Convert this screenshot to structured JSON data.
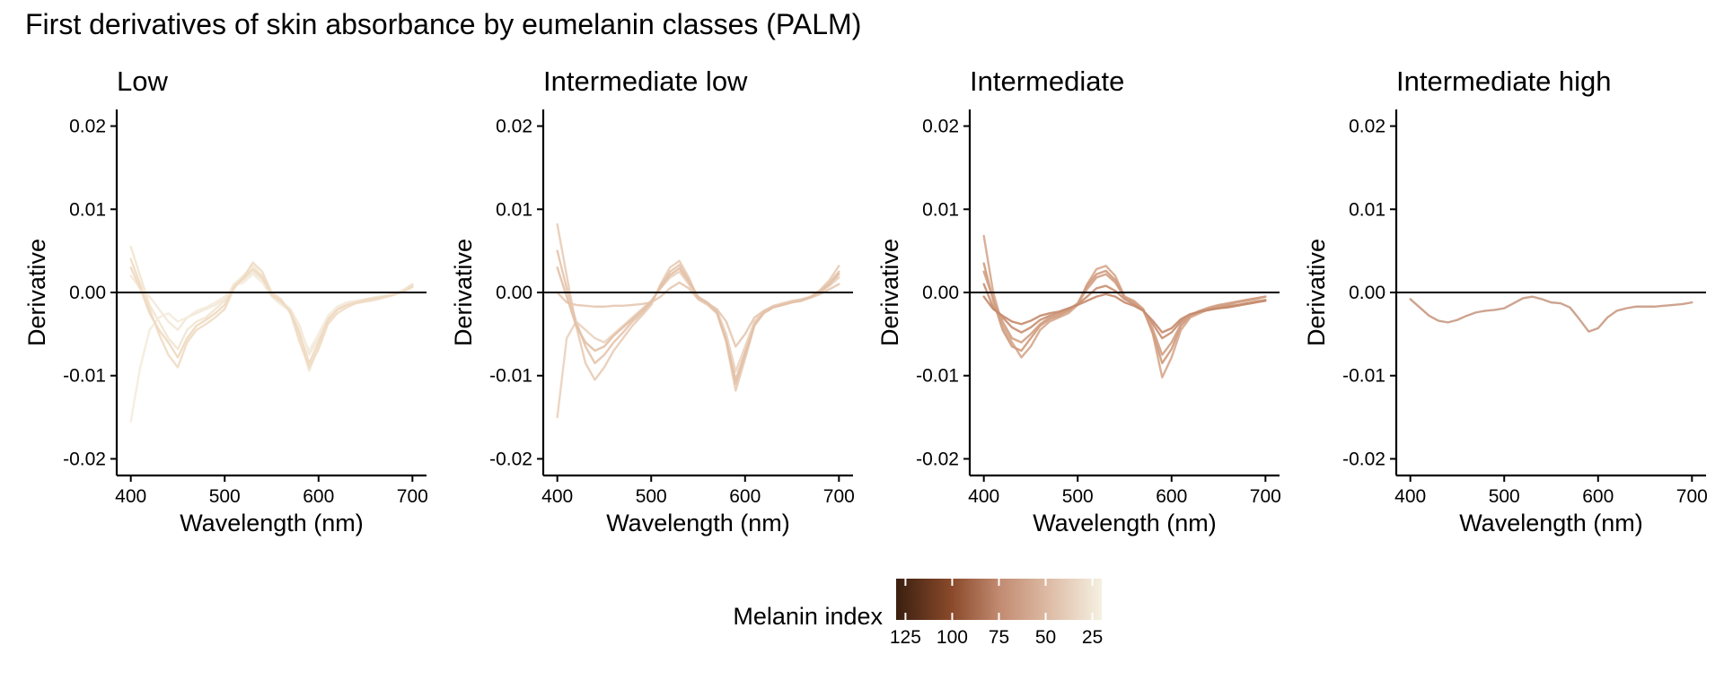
{
  "chart_data": {
    "type": "line",
    "title": "First derivatives of skin absorbance by eumelanin classes (PALM)",
    "xlabel": "Wavelength (nm)",
    "ylabel": "Derivative",
    "xlim": [
      385,
      715
    ],
    "ylim": [
      -0.022,
      0.022
    ],
    "x_ticks": [
      400,
      500,
      600,
      700
    ],
    "y_ticks": [
      0.02,
      0.01,
      0.0,
      -0.01,
      -0.02
    ],
    "y_tick_labels": [
      "0.02",
      "0.01",
      "0.00",
      "-0.01",
      "-0.02"
    ],
    "hline": 0,
    "x": [
      400,
      410,
      420,
      430,
      440,
      450,
      460,
      470,
      480,
      490,
      500,
      510,
      520,
      530,
      540,
      550,
      560,
      570,
      580,
      590,
      600,
      610,
      620,
      630,
      640,
      650,
      660,
      670,
      680,
      690,
      700
    ],
    "legend": {
      "title": "Melanin index",
      "type": "colorbar",
      "range": [
        20,
        130
      ],
      "ticks": [
        125,
        100,
        75,
        50,
        25
      ],
      "stops": [
        {
          "value": 130,
          "color": "#3a1f10"
        },
        {
          "value": 100,
          "color": "#8b4a2b"
        },
        {
          "value": 75,
          "color": "#c18a70"
        },
        {
          "value": 50,
          "color": "#dcb8a2"
        },
        {
          "value": 20,
          "color": "#f5f0e1"
        }
      ]
    },
    "panels": [
      {
        "title": "Low",
        "series": [
          {
            "name": "low-1",
            "color": "#f2e5d2",
            "values": [
              0.0055,
              0.002,
              -0.0015,
              -0.0035,
              -0.0055,
              -0.0068,
              -0.0045,
              -0.0035,
              -0.003,
              -0.002,
              -0.001,
              0.001,
              0.002,
              0.0032,
              0.002,
              -0.0005,
              -0.001,
              -0.002,
              -0.0055,
              -0.0094,
              -0.0065,
              -0.0035,
              -0.002,
              -0.0015,
              -0.0012,
              -0.001,
              -0.0007,
              -0.0005,
              -0.0002,
              0.0003,
              0.001
            ]
          },
          {
            "name": "low-2",
            "color": "#efdcc4",
            "values": [
              0.004,
              0.001,
              -0.002,
              -0.005,
              -0.0075,
              -0.009,
              -0.006,
              -0.0045,
              -0.0038,
              -0.003,
              -0.002,
              0.0005,
              0.0018,
              0.0036,
              0.0025,
              0.0,
              -0.0008,
              -0.0025,
              -0.006,
              -0.009,
              -0.0068,
              -0.0038,
              -0.0025,
              -0.0018,
              -0.0013,
              -0.0011,
              -0.0009,
              -0.0006,
              -0.0003,
              0.0002,
              0.0009
            ]
          },
          {
            "name": "low-3",
            "color": "#f3e8d8",
            "values": [
              0.002,
              0.0005,
              -0.0005,
              -0.002,
              -0.0035,
              -0.0045,
              -0.003,
              -0.0025,
              -0.002,
              -0.0015,
              -0.0008,
              0.001,
              0.0015,
              0.0025,
              0.0015,
              -0.0003,
              -0.0012,
              -0.002,
              -0.004,
              -0.0075,
              -0.0055,
              -0.003,
              -0.0018,
              -0.0012,
              -0.001,
              -0.0008,
              -0.0006,
              -0.0004,
              -0.0002,
              0.0002,
              0.0008
            ]
          },
          {
            "name": "low-4",
            "color": "#f4ebdd",
            "values": [
              -0.0155,
              -0.009,
              -0.0045,
              -0.003,
              -0.0025,
              -0.0035,
              -0.003,
              -0.0022,
              -0.0018,
              -0.0012,
              -0.0005,
              0.0008,
              0.0012,
              0.0022,
              0.0012,
              -0.0005,
              -0.0015,
              -0.0022,
              -0.0045,
              -0.007,
              -0.005,
              -0.0028,
              -0.0017,
              -0.0012,
              -0.001,
              -0.0008,
              -0.0006,
              -0.0004,
              -0.0002,
              0.0001,
              0.0006
            ]
          },
          {
            "name": "low-5",
            "color": "#eed9c0",
            "values": [
              0.003,
              0.0005,
              -0.0025,
              -0.0045,
              -0.006,
              -0.0078,
              -0.0055,
              -0.004,
              -0.0033,
              -0.0025,
              -0.0015,
              0.0007,
              0.0017,
              0.0028,
              0.0018,
              -0.0003,
              -0.0011,
              -0.0023,
              -0.005,
              -0.0085,
              -0.006,
              -0.0033,
              -0.0021,
              -0.0015,
              -0.0012,
              -0.0009,
              -0.0007,
              -0.0005,
              -0.0003,
              0.0001,
              0.0007
            ]
          }
        ]
      },
      {
        "title": "Intermediate low",
        "series": [
          {
            "name": "il-1",
            "color": "#e8ccb6",
            "values": [
              0.0082,
              0.002,
              -0.004,
              -0.0085,
              -0.0105,
              -0.009,
              -0.007,
              -0.0055,
              -0.004,
              -0.0028,
              -0.0015,
              0.001,
              0.003,
              0.0038,
              0.0018,
              -0.0008,
              -0.0015,
              -0.0025,
              -0.006,
              -0.0118,
              -0.008,
              -0.004,
              -0.0025,
              -0.0018,
              -0.0015,
              -0.0012,
              -0.001,
              -0.0005,
              0.0003,
              0.0015,
              0.0032
            ]
          },
          {
            "name": "il-2",
            "color": "#e4c4ac",
            "values": [
              0.005,
              0.0005,
              -0.0035,
              -0.0065,
              -0.0085,
              -0.0075,
              -0.006,
              -0.0048,
              -0.0035,
              -0.0025,
              -0.0012,
              0.0008,
              0.0025,
              0.0033,
              0.0015,
              -0.0005,
              -0.0012,
              -0.0022,
              -0.0055,
              -0.0105,
              -0.0072,
              -0.0038,
              -0.0023,
              -0.0017,
              -0.0014,
              -0.0011,
              -0.0009,
              -0.0005,
              0.0002,
              0.0012,
              0.0025
            ]
          },
          {
            "name": "il-3",
            "color": "#ead2be",
            "values": [
              -0.015,
              -0.0055,
              -0.0035,
              -0.0045,
              -0.0055,
              -0.006,
              -0.005,
              -0.004,
              -0.003,
              -0.002,
              -0.001,
              0.0005,
              0.0018,
              0.0025,
              0.001,
              -0.0008,
              -0.0015,
              -0.0022,
              -0.005,
              -0.0095,
              -0.0065,
              -0.0035,
              -0.0022,
              -0.0016,
              -0.0013,
              -0.001,
              -0.0008,
              -0.0005,
              0.0,
              0.0008,
              0.0018
            ]
          },
          {
            "name": "il-4",
            "color": "#e6c8b1",
            "values": [
              0.0,
              -0.0012,
              -0.0015,
              -0.0016,
              -0.0017,
              -0.0017,
              -0.0016,
              -0.0016,
              -0.0015,
              -0.0014,
              -0.0012,
              -0.0005,
              0.0005,
              0.0012,
              0.0005,
              -0.0008,
              -0.0013,
              -0.002,
              -0.0035,
              -0.0065,
              -0.005,
              -0.003,
              -0.0022,
              -0.0017,
              -0.0014,
              -0.0011,
              -0.0009,
              -0.0006,
              -0.0002,
              0.0004,
              0.001
            ]
          },
          {
            "name": "il-5",
            "color": "#e2c0a6",
            "values": [
              0.003,
              -0.0005,
              -0.004,
              -0.006,
              -0.007,
              -0.0065,
              -0.0052,
              -0.0042,
              -0.0032,
              -0.0022,
              -0.0011,
              0.0006,
              0.0021,
              0.0029,
              0.0013,
              -0.0006,
              -0.0013,
              -0.0024,
              -0.0058,
              -0.011,
              -0.0075,
              -0.0039,
              -0.0024,
              -0.0018,
              -0.0015,
              -0.0012,
              -0.001,
              -0.0006,
              0.0001,
              0.001,
              0.0022
            ]
          }
        ]
      },
      {
        "title": "Intermediate",
        "series": [
          {
            "name": "im-1",
            "color": "#d6a68b",
            "values": [
              0.0068,
              0.0,
              -0.004,
              -0.006,
              -0.0078,
              -0.0065,
              -0.0045,
              -0.0035,
              -0.003,
              -0.0025,
              -0.0015,
              0.001,
              0.0028,
              0.0032,
              0.002,
              -0.0005,
              -0.001,
              -0.002,
              -0.005,
              -0.0102,
              -0.0078,
              -0.0045,
              -0.003,
              -0.0025,
              -0.002,
              -0.0017,
              -0.0015,
              -0.0012,
              -0.001,
              -0.0008,
              -0.0005
            ]
          },
          {
            "name": "im-2",
            "color": "#cf9a7c",
            "values": [
              0.0035,
              -0.001,
              -0.0045,
              -0.0065,
              -0.007,
              -0.0055,
              -0.004,
              -0.0032,
              -0.0028,
              -0.0022,
              -0.0013,
              0.0008,
              0.0022,
              0.0026,
              0.0015,
              -0.0006,
              -0.0012,
              -0.0022,
              -0.0048,
              -0.0085,
              -0.0068,
              -0.004,
              -0.0028,
              -0.0023,
              -0.0019,
              -0.0016,
              -0.0014,
              -0.0011,
              -0.0009,
              -0.0007,
              -0.0005
            ]
          },
          {
            "name": "im-3",
            "color": "#c88e70",
            "values": [
              0.001,
              -0.0018,
              -0.003,
              -0.0042,
              -0.0048,
              -0.0042,
              -0.0033,
              -0.0028,
              -0.0025,
              -0.002,
              -0.0014,
              -0.0005,
              0.0005,
              0.0008,
              0.0002,
              -0.0008,
              -0.0014,
              -0.0022,
              -0.0038,
              -0.0055,
              -0.0048,
              -0.0035,
              -0.0027,
              -0.0023,
              -0.0021,
              -0.0019,
              -0.0017,
              -0.0015,
              -0.0013,
              -0.0011,
              -0.0009
            ]
          },
          {
            "name": "im-4",
            "color": "#d2a084",
            "values": [
              0.0025,
              -0.0008,
              -0.0035,
              -0.0055,
              -0.006,
              -0.005,
              -0.0038,
              -0.003,
              -0.0026,
              -0.0021,
              -0.0013,
              0.0004,
              0.0018,
              0.0022,
              0.0012,
              -0.0006,
              -0.0012,
              -0.0021,
              -0.0044,
              -0.0075,
              -0.006,
              -0.0038,
              -0.0027,
              -0.0022,
              -0.0018,
              -0.0015,
              -0.0013,
              -0.0011,
              -0.0009,
              -0.0007,
              -0.0005
            ]
          },
          {
            "name": "im-5",
            "color": "#c48a6b",
            "values": [
              -0.0005,
              -0.002,
              -0.0028,
              -0.0035,
              -0.0038,
              -0.0034,
              -0.0028,
              -0.0025,
              -0.0023,
              -0.0019,
              -0.0015,
              -0.001,
              -0.0005,
              -0.0002,
              -0.0005,
              -0.0012,
              -0.0016,
              -0.0022,
              -0.0034,
              -0.0048,
              -0.0043,
              -0.0032,
              -0.0026,
              -0.0023,
              -0.0021,
              -0.0019,
              -0.0018,
              -0.0016,
              -0.0014,
              -0.0012,
              -0.001
            ]
          }
        ]
      },
      {
        "title": "Intermediate high",
        "series": [
          {
            "name": "ih-1",
            "color": "#c89a84",
            "values": [
              -0.0008,
              -0.0018,
              -0.0028,
              -0.0034,
              -0.0036,
              -0.0033,
              -0.0028,
              -0.0024,
              -0.0022,
              -0.0021,
              -0.0019,
              -0.0013,
              -0.0007,
              -0.0005,
              -0.0008,
              -0.0012,
              -0.0013,
              -0.0018,
              -0.0032,
              -0.0047,
              -0.0043,
              -0.003,
              -0.0022,
              -0.0019,
              -0.0017,
              -0.0017,
              -0.0017,
              -0.0016,
              -0.0015,
              -0.0014,
              -0.0012
            ]
          }
        ]
      }
    ]
  }
}
